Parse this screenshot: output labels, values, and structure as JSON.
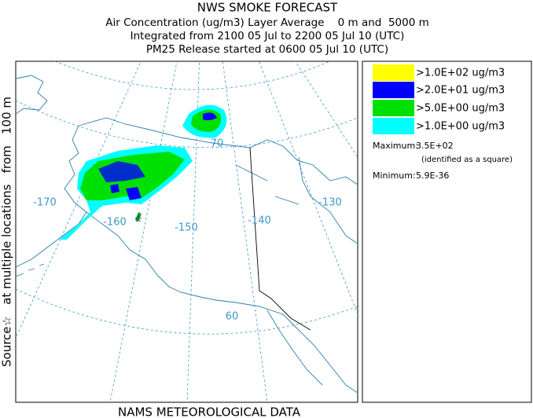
{
  "header": {
    "title": "NWS SMOKE FORECAST",
    "lines": [
      "Air Concentration (ug/m3) Layer Average    0 m and  5000 m",
      "Integrated from 2100 05 Jul to 2200 05 Jul 10 (UTC)",
      "PM25 Release started at 0600 05 Jul 10 (UTC)"
    ]
  },
  "side_label": "Source☆   at multiple locations   from   100 m",
  "map": {
    "grid_labels": [
      "-170",
      "-160",
      "-150",
      "-140",
      "-130",
      "70",
      "60"
    ]
  },
  "legend": {
    "items": [
      {
        "label": ">1.0E+02 ug/m3",
        "color": "#ffff00"
      },
      {
        "label": ">2.0E+01 ug/m3",
        "color": "#0000ff"
      },
      {
        "label": ">5.0E+00 ug/m3",
        "color": "#00e000"
      },
      {
        "label": ">1.0E+00 ug/m3",
        "color": "#00ffff"
      }
    ],
    "maximum_label": "Maximum:",
    "maximum_value": "3.5E+02",
    "maximum_note": "(identified as a square)",
    "minimum_label": "Minimum:",
    "minimum_value": "5.9E-36"
  },
  "footer": "NAMS METEOROLOGICAL DATA"
}
